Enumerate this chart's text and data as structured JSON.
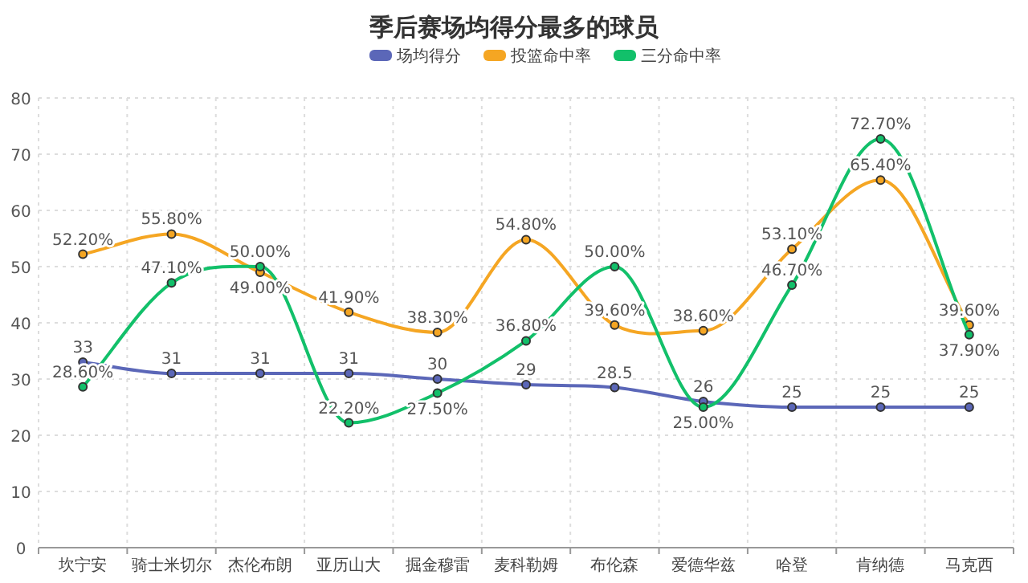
{
  "chart_data": {
    "type": "line",
    "title": "季后赛场均得分最多的球员",
    "categories": [
      "坎宁安",
      "骑士米切尔",
      "杰伦布朗",
      "亚历山大",
      "掘金穆雷",
      "麦科勒姆",
      "布伦森",
      "爱德华兹",
      "哈登",
      "肯纳德",
      "马克西"
    ],
    "series": [
      {
        "name": "场均得分",
        "color": "#5b67b8",
        "values": [
          33,
          31,
          31,
          31,
          30,
          29,
          28.5,
          26,
          25,
          25,
          25
        ],
        "value_labels": [
          "33",
          "31",
          "31",
          "31",
          "30",
          "29",
          "28.5",
          "26",
          "25",
          "25",
          "25"
        ]
      },
      {
        "name": "投篮命中率",
        "color": "#f5a623",
        "values": [
          52.2,
          55.8,
          49.0,
          41.9,
          38.3,
          54.8,
          39.6,
          38.6,
          53.1,
          65.4,
          39.6
        ],
        "value_labels": [
          "52.20%",
          "55.80%",
          "49.00%",
          "41.90%",
          "38.30%",
          "54.80%",
          "39.60%",
          "38.60%",
          "53.10%",
          "65.40%",
          "39.60%"
        ]
      },
      {
        "name": "三分命中率",
        "color": "#12c06a",
        "values": [
          28.6,
          47.1,
          50.0,
          22.2,
          27.5,
          36.8,
          50.0,
          25.0,
          46.7,
          72.7,
          37.9
        ],
        "value_labels": [
          "28.60%",
          "47.10%",
          "50.00%",
          "22.20%",
          "27.50%",
          "36.80%",
          "50.00%",
          "25.00%",
          "46.70%",
          "72.70%",
          "37.90%"
        ]
      }
    ],
    "ylim": [
      0,
      80
    ],
    "yticks": [
      0,
      10,
      20,
      30,
      40,
      50,
      60,
      70,
      80
    ],
    "grid": true,
    "legend": "top",
    "marker": "circle",
    "line_style": "solid"
  }
}
